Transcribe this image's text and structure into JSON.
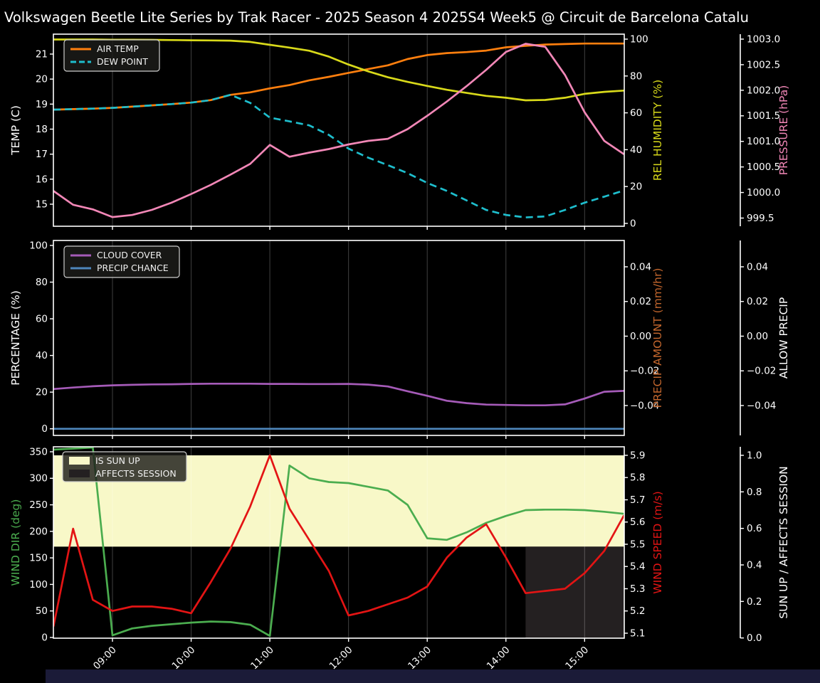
{
  "title": "Volkswagen Beetle Lite Series by Trak Racer - 2025 Season 4 2025S4 Week5 @ Circuit de Barcelona Catalu",
  "bottom_bar": {
    "color": "#1b1b38"
  },
  "x_axis": {
    "tick_labels": [
      "09:00",
      "10:00",
      "11:00",
      "12:00",
      "13:00",
      "14:00",
      "15:00"
    ],
    "tick_hours": [
      9,
      10,
      11,
      12,
      13,
      14,
      15
    ]
  },
  "times": [
    "08:15",
    "08:30",
    "08:45",
    "09:00",
    "09:15",
    "09:30",
    "09:45",
    "10:00",
    "10:15",
    "10:30",
    "10:45",
    "11:00",
    "11:15",
    "11:30",
    "11:45",
    "12:00",
    "12:15",
    "12:30",
    "12:45",
    "13:00",
    "13:15",
    "13:30",
    "13:45",
    "14:00",
    "14:15",
    "14:30",
    "14:45",
    "15:00",
    "15:15",
    "15:30"
  ],
  "chart_data": [
    {
      "id": "temp",
      "type": "line",
      "left_axis": {
        "label": "TEMP (C)",
        "label_color": "#ffffff",
        "ticks": [
          15,
          16,
          17,
          18,
          19,
          20,
          21
        ],
        "tick_labels": [
          "15",
          "16",
          "17",
          "18",
          "19",
          "20",
          "21"
        ]
      },
      "right_axis_inner": {
        "label": "REL HUMIDITY (%)",
        "label_color": "#d8d91a",
        "ticks": [
          0,
          20,
          40,
          60,
          80,
          100
        ],
        "tick_labels": [
          "0",
          "20",
          "40",
          "60",
          "80",
          "100"
        ]
      },
      "right_axis_outer": {
        "label": "PRESSURE (hPa)",
        "label_color": "#f287b7",
        "ticks": [
          999.5,
          1000.0,
          1000.5,
          1001.0,
          1001.5,
          1002.0,
          1002.5,
          1003.0
        ],
        "tick_labels": [
          "999.5",
          "1000.0",
          "1000.5",
          "1001.0",
          "1001.5",
          "1002.0",
          "1002.5",
          "1003.0"
        ]
      },
      "legend": [
        {
          "label": "AIR TEMP",
          "color": "#ff7f0e",
          "style": "solid"
        },
        {
          "label": "DEW POINT",
          "color": "#1ebecd",
          "style": "dashed"
        }
      ],
      "series": [
        {
          "name": "AIR TEMP",
          "axis": "left",
          "color": "#ff7f0e",
          "style": "solid",
          "values": [
            18.78,
            18.8,
            18.82,
            18.85,
            18.9,
            18.95,
            19.0,
            19.06,
            19.16,
            19.37,
            19.47,
            19.63,
            19.76,
            19.95,
            20.09,
            20.25,
            20.4,
            20.55,
            20.8,
            20.96,
            21.04,
            21.08,
            21.14,
            21.27,
            21.33,
            21.38,
            21.4,
            21.42,
            21.42,
            21.42
          ]
        },
        {
          "name": "DEW POINT",
          "axis": "left",
          "color": "#1ebecd",
          "style": "dashed",
          "values": [
            18.78,
            18.8,
            18.82,
            18.85,
            18.9,
            18.95,
            19.0,
            19.06,
            19.16,
            19.37,
            19.05,
            18.46,
            18.31,
            18.15,
            17.77,
            17.22,
            16.86,
            16.56,
            16.24,
            15.85,
            15.53,
            15.15,
            14.77,
            14.57,
            14.47,
            14.51,
            14.77,
            15.06,
            15.3,
            15.55
          ]
        },
        {
          "name": "REL HUMIDITY",
          "axis": "right_inner",
          "color": "#d8d91a",
          "style": "solid",
          "values": [
            99.8,
            99.8,
            99.8,
            99.7,
            99.7,
            99.6,
            99.5,
            99.4,
            99.3,
            99.2,
            98.5,
            96.9,
            95.4,
            93.7,
            90.5,
            86.2,
            82.5,
            79.3,
            76.8,
            74.6,
            72.5,
            70.8,
            69.2,
            68.2,
            66.8,
            67.0,
            68.2,
            70.3,
            71.4,
            72.1
          ]
        },
        {
          "name": "PRESSURE",
          "axis": "right_outer",
          "color": "#f287b7",
          "style": "solid",
          "values": [
            1000.03,
            999.76,
            999.67,
            999.52,
            999.56,
            999.66,
            999.8,
            999.97,
            1000.15,
            1000.35,
            1000.56,
            1000.93,
            1000.7,
            1000.78,
            1000.85,
            1000.94,
            1001.01,
            1001.05,
            1001.24,
            1001.5,
            1001.78,
            1002.08,
            1002.4,
            1002.75,
            1002.91,
            1002.85,
            1002.3,
            1001.57,
            1001.01,
            1000.75
          ]
        }
      ]
    },
    {
      "id": "precip",
      "type": "line",
      "left_axis": {
        "label": "PERCENTAGE (%)",
        "label_color": "#ffffff",
        "ticks": [
          0,
          20,
          40,
          60,
          80,
          100
        ],
        "tick_labels": [
          "0",
          "20",
          "40",
          "60",
          "80",
          "100"
        ]
      },
      "right_axis_inner": {
        "label": "PRECIP AMOUNT (mm/hr)",
        "label_color": "#c2662d",
        "ticks": [
          -0.04,
          -0.02,
          0.0,
          0.02,
          0.04
        ],
        "tick_labels": [
          "−0.04",
          "−0.02",
          "0.00",
          "0.02",
          "0.04"
        ]
      },
      "right_axis_outer": {
        "label": "ALLOW PRECIP",
        "label_color": "#ffffff",
        "ticks": [
          -0.04,
          -0.02,
          0.0,
          0.02,
          0.04
        ],
        "tick_labels": [
          "−0.04",
          "−0.02",
          "0.00",
          "0.02",
          "0.04"
        ]
      },
      "legend": [
        {
          "label": "CLOUD COVER",
          "color": "#a55bb8",
          "style": "solid"
        },
        {
          "label": "PRECIP CHANCE",
          "color": "#4e86bb",
          "style": "solid"
        }
      ],
      "series": [
        {
          "name": "CLOUD COVER",
          "axis": "left",
          "color": "#a55bb8",
          "style": "solid",
          "values": [
            21.7,
            22.5,
            23.2,
            23.7,
            24.0,
            24.2,
            24.3,
            24.5,
            24.6,
            24.6,
            24.6,
            24.5,
            24.5,
            24.4,
            24.4,
            24.5,
            24.1,
            23.1,
            20.5,
            18.0,
            15.3,
            14.0,
            13.2,
            13.0,
            12.8,
            12.8,
            13.3,
            16.5,
            20.2,
            20.7
          ]
        },
        {
          "name": "PRECIP CHANCE",
          "axis": "left",
          "color": "#4e86bb",
          "style": "solid",
          "values": [
            0,
            0,
            0,
            0,
            0,
            0,
            0,
            0,
            0,
            0,
            0,
            0,
            0,
            0,
            0,
            0,
            0,
            0,
            0,
            0,
            0,
            0,
            0,
            0,
            0,
            0,
            0,
            0,
            0,
            0
          ]
        }
      ]
    },
    {
      "id": "wind",
      "type": "line",
      "left_axis": {
        "label": "WIND DIR (deg)",
        "label_color": "#4bad4f",
        "ticks": [
          0,
          50,
          100,
          150,
          200,
          250,
          300,
          350
        ],
        "tick_labels": [
          "0",
          "50",
          "100",
          "150",
          "200",
          "250",
          "300",
          "350"
        ]
      },
      "right_axis_inner": {
        "label": "WIND SPEED (m/s)",
        "label_color": "#e31414",
        "ticks": [
          5.1,
          5.2,
          5.3,
          5.4,
          5.5,
          5.6,
          5.7,
          5.8,
          5.9
        ],
        "tick_labels": [
          "5.1",
          "5.2",
          "5.3",
          "5.4",
          "5.5",
          "5.6",
          "5.7",
          "5.8",
          "5.9"
        ]
      },
      "right_axis_outer": {
        "label": "SUN UP / AFFECTS SESSION",
        "label_color": "#ffffff",
        "ticks": [
          0.0,
          0.2,
          0.4,
          0.6,
          0.8,
          1.0
        ],
        "tick_labels": [
          "0.0",
          "0.2",
          "0.4",
          "0.6",
          "0.8",
          "1.0"
        ]
      },
      "legend": [
        {
          "label": "IS SUN UP",
          "color": "#f8f8c8",
          "style": "patch"
        },
        {
          "label": "AFFECTS SESSION",
          "color": "#242021",
          "style": "patch"
        }
      ],
      "bands": [
        {
          "name": "IS SUN UP",
          "color": "#f8f8c8",
          "from": "08:15",
          "to": "15:30",
          "y_from": 0.5,
          "y_to": 1.0
        },
        {
          "name": "AFFECTS SESSION",
          "color": "#242021",
          "from": "14:15",
          "to": "15:30",
          "y_from": 0.0,
          "y_to": 0.5
        }
      ],
      "series": [
        {
          "name": "WIND DIR",
          "axis": "left",
          "color": "#4bad4f",
          "style": "solid",
          "values": [
            354,
            356,
            358,
            4,
            17,
            22,
            25,
            28,
            30,
            29,
            24,
            3,
            324,
            300,
            293,
            291,
            284,
            277,
            250,
            187,
            184,
            198,
            216,
            229,
            240,
            241,
            241,
            240,
            237,
            233
          ]
        },
        {
          "name": "WIND SPEED",
          "axis": "right_inner",
          "color": "#e31414",
          "style": "solid",
          "values": [
            5.13,
            5.57,
            5.25,
            5.2,
            5.22,
            5.22,
            5.21,
            5.19,
            5.33,
            5.48,
            5.67,
            5.9,
            5.66,
            5.52,
            5.38,
            5.18,
            5.2,
            5.23,
            5.26,
            5.31,
            5.44,
            5.53,
            5.59,
            5.44,
            5.28,
            5.29,
            5.3,
            5.37,
            5.47,
            5.63
          ]
        }
      ]
    }
  ]
}
